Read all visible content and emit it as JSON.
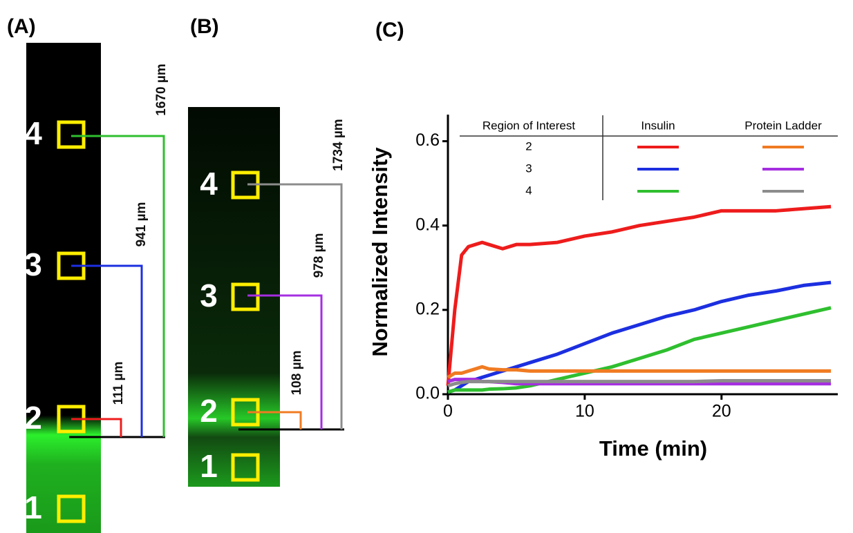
{
  "panels": {
    "a": {
      "label": "(A)",
      "regions": [
        "4",
        "3",
        "2",
        "1"
      ],
      "distances": [
        "1670 µm",
        "941 µm",
        "111 µm"
      ]
    },
    "b": {
      "label": "(B)",
      "regions": [
        "4",
        "3",
        "2",
        "1"
      ],
      "distances": [
        "1734 µm",
        "978 µm",
        "108 µm"
      ]
    }
  },
  "chart_data": {
    "type": "line",
    "label": "(C)",
    "x_label": "Time (min)",
    "y_label": "Normalized Intensity",
    "legend_title": "Region of Interest",
    "x": [
      0,
      0.5,
      1,
      1.5,
      2,
      2.5,
      3,
      4,
      5,
      6,
      8,
      10,
      12,
      14,
      16,
      18,
      20,
      22,
      24,
      26,
      28
    ],
    "series": [
      {
        "name": "2",
        "group": "Insulin",
        "color": "#ee1c1c",
        "values": [
          0.02,
          0.2,
          0.33,
          0.35,
          0.355,
          0.36,
          0.355,
          0.345,
          0.355,
          0.355,
          0.36,
          0.375,
          0.385,
          0.4,
          0.41,
          0.42,
          0.435,
          0.435,
          0.435,
          0.44,
          0.445
        ]
      },
      {
        "name": "3",
        "group": "Insulin",
        "color": "#1c2fe0",
        "values": [
          0.005,
          0.01,
          0.02,
          0.03,
          0.035,
          0.04,
          0.045,
          0.055,
          0.065,
          0.075,
          0.095,
          0.12,
          0.145,
          0.165,
          0.185,
          0.2,
          0.22,
          0.235,
          0.245,
          0.258,
          0.265
        ]
      },
      {
        "name": "4",
        "group": "Insulin",
        "color": "#2fbf2f",
        "values": [
          0.005,
          0.01,
          0.01,
          0.01,
          0.01,
          0.01,
          0.012,
          0.013,
          0.015,
          0.02,
          0.035,
          0.05,
          0.065,
          0.085,
          0.105,
          0.13,
          0.145,
          0.16,
          0.175,
          0.19,
          0.205
        ]
      },
      {
        "name": "2",
        "group": "Protein Ladder",
        "color": "#f07b22",
        "values": [
          0.04,
          0.05,
          0.05,
          0.055,
          0.06,
          0.065,
          0.06,
          0.058,
          0.058,
          0.055,
          0.055,
          0.055,
          0.055,
          0.055,
          0.055,
          0.055,
          0.055,
          0.055,
          0.055,
          0.055,
          0.055
        ]
      },
      {
        "name": "3",
        "group": "Protein Ladder",
        "color": "#a52ee0",
        "values": [
          0.03,
          0.035,
          0.035,
          0.035,
          0.035,
          0.03,
          0.03,
          0.028,
          0.025,
          0.025,
          0.025,
          0.025,
          0.025,
          0.025,
          0.025,
          0.025,
          0.025,
          0.025,
          0.025,
          0.025,
          0.025
        ]
      },
      {
        "name": "4",
        "group": "Protein Ladder",
        "color": "#8c8c8c",
        "values": [
          0.02,
          0.025,
          0.028,
          0.03,
          0.03,
          0.03,
          0.03,
          0.03,
          0.03,
          0.03,
          0.03,
          0.03,
          0.03,
          0.03,
          0.03,
          0.03,
          0.032,
          0.032,
          0.032,
          0.032,
          0.032
        ]
      }
    ],
    "xlim": [
      0,
      28.5
    ],
    "xticks": [
      0,
      10,
      20
    ],
    "ylim": [
      0,
      0.65
    ],
    "yticks": [
      {
        "value": 0,
        "label": "0.0"
      },
      0.2,
      0.4,
      0.6
    ]
  }
}
